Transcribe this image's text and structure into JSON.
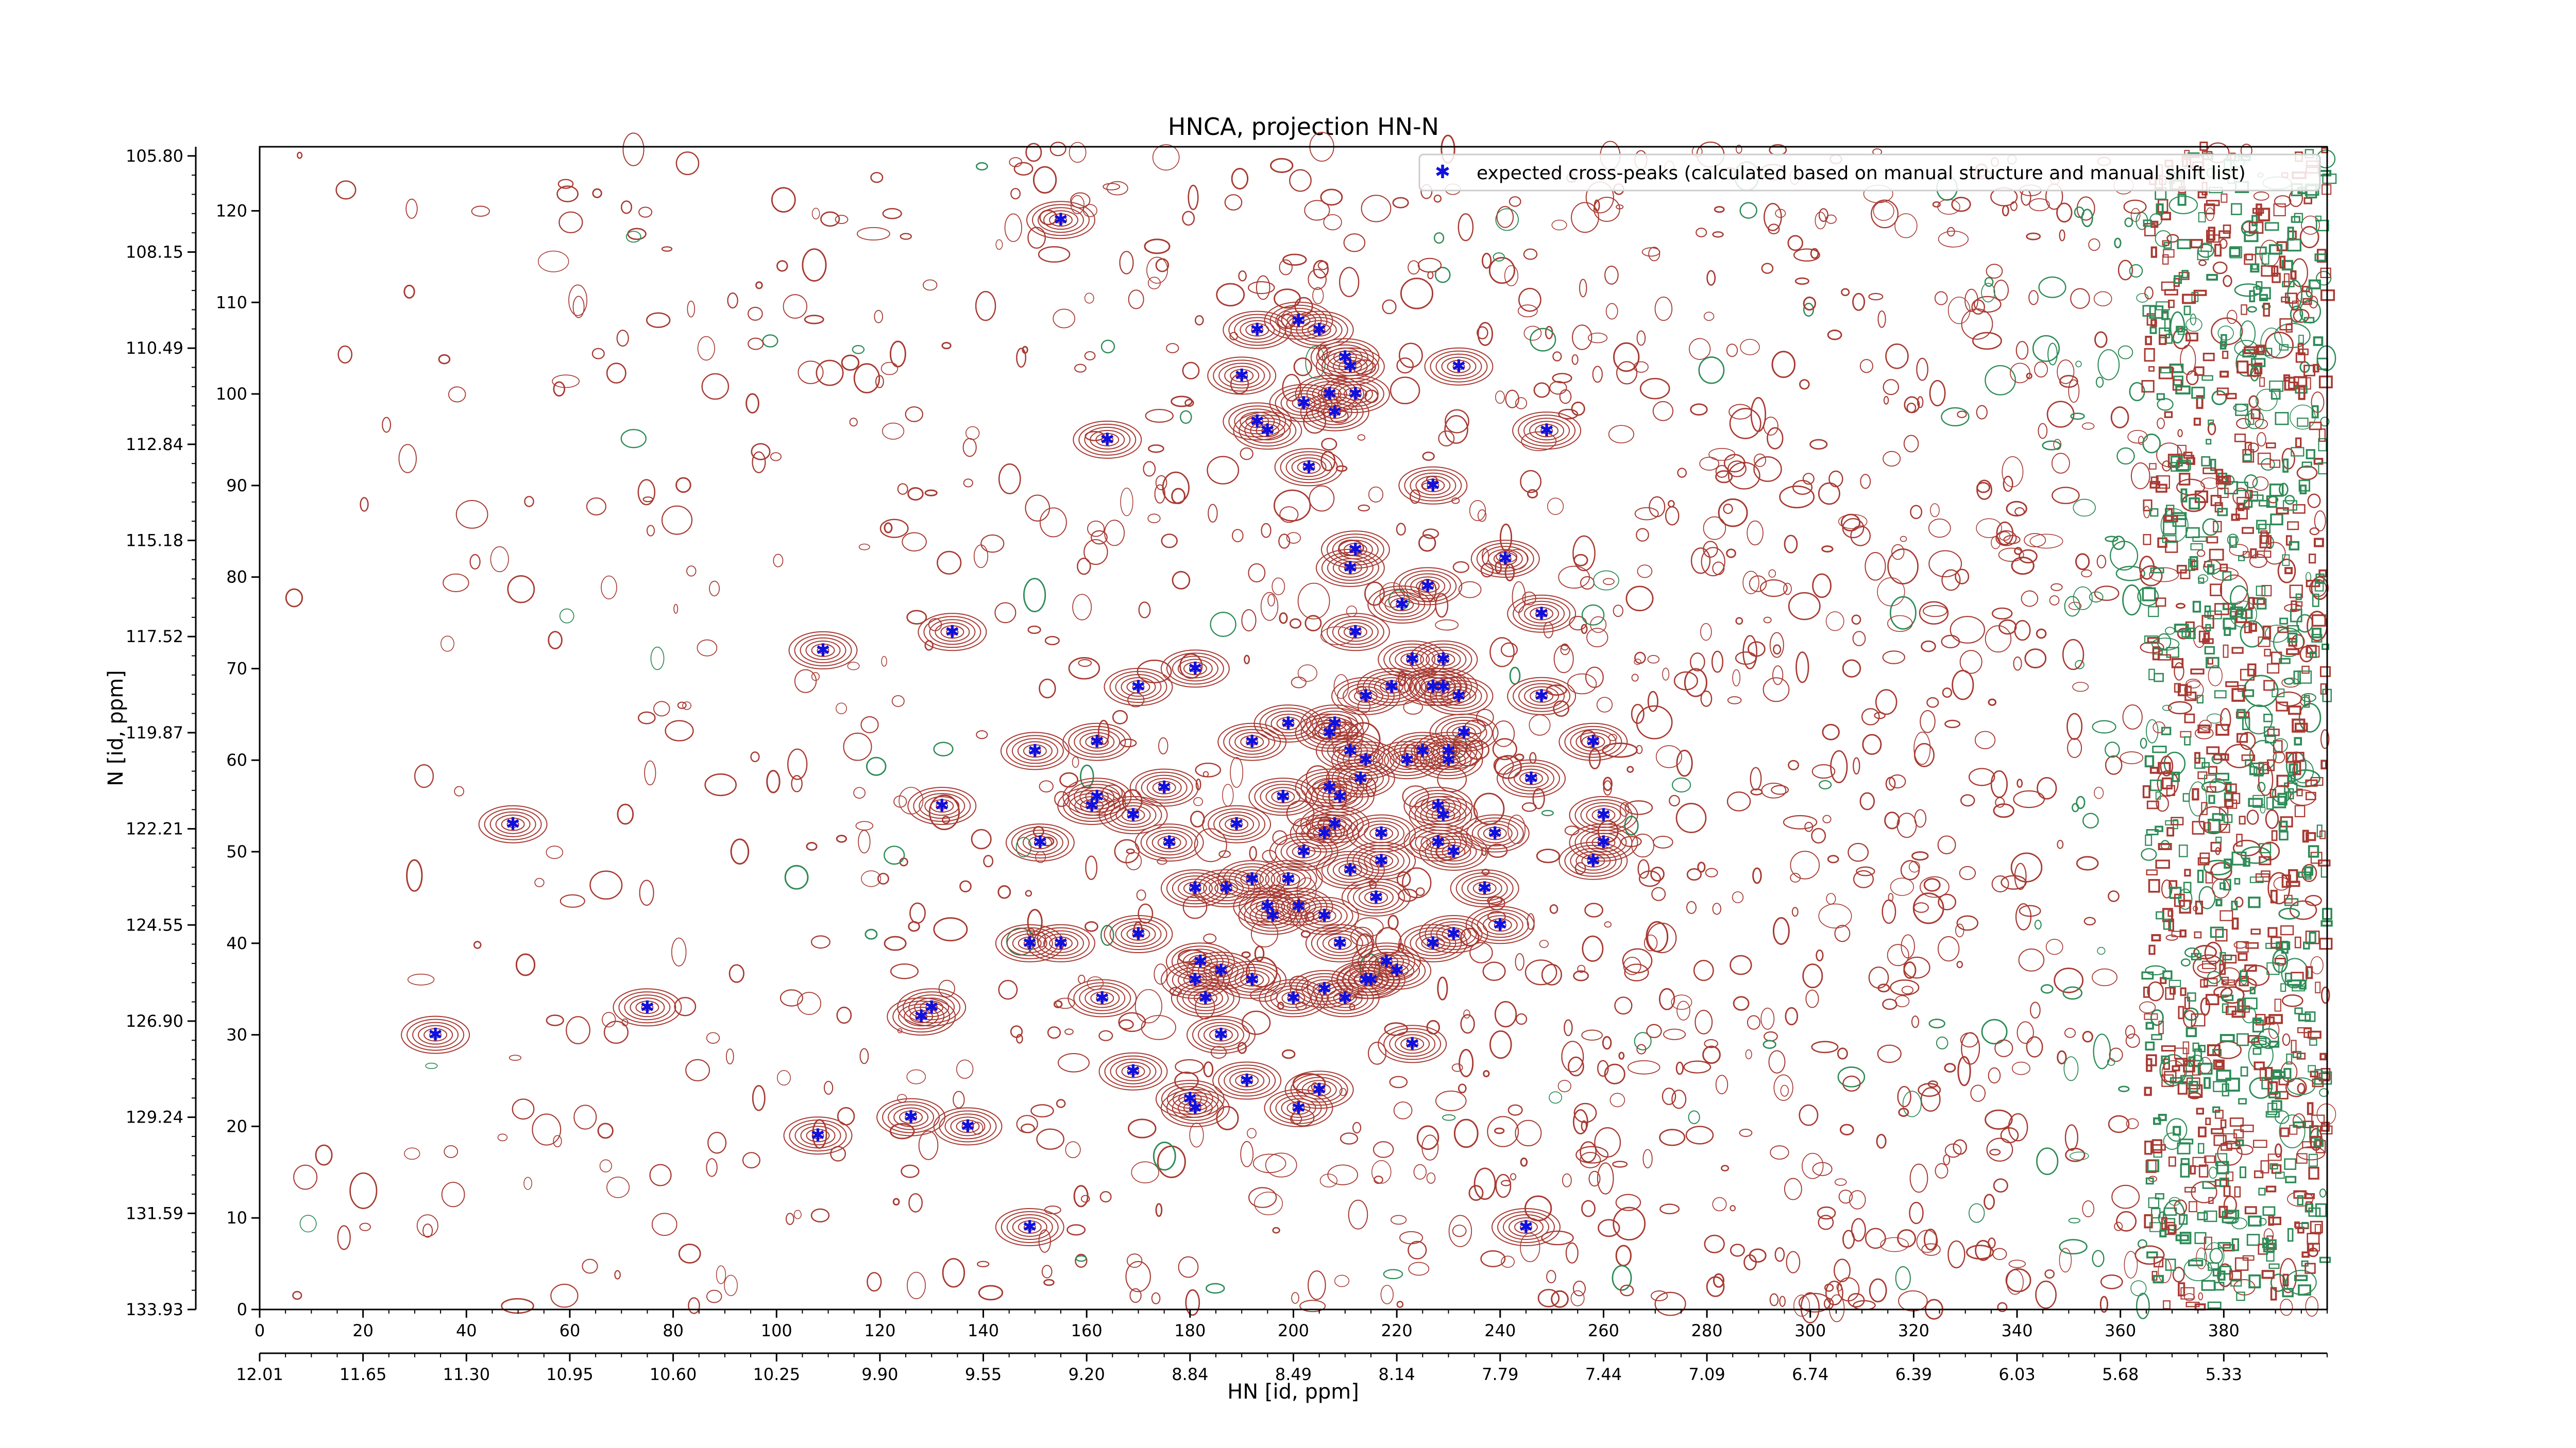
{
  "chart_data": {
    "type": "scatter",
    "title": "HNCA, projection HN-N",
    "xlabel": "HN [id, ppm]",
    "ylabel": "N [id, ppm]",
    "xlim": [
      0,
      400
    ],
    "ylim": [
      0,
      127
    ],
    "x_ticks": [
      0,
      20,
      40,
      60,
      80,
      100,
      120,
      140,
      160,
      180,
      200,
      220,
      240,
      260,
      280,
      300,
      320,
      340,
      360,
      380
    ],
    "y_ticks": [
      0,
      10,
      20,
      30,
      40,
      50,
      60,
      70,
      80,
      90,
      100,
      110,
      120
    ],
    "ppm_x_ticks": [
      {
        "at": 0,
        "label": "12.01"
      },
      {
        "at": 20,
        "label": "11.65"
      },
      {
        "at": 40,
        "label": "11.30"
      },
      {
        "at": 60,
        "label": "10.95"
      },
      {
        "at": 80,
        "label": "10.60"
      },
      {
        "at": 100,
        "label": "10.25"
      },
      {
        "at": 120,
        "label": "9.90"
      },
      {
        "at": 140,
        "label": "9.55"
      },
      {
        "at": 160,
        "label": "9.20"
      },
      {
        "at": 180,
        "label": "8.84"
      },
      {
        "at": 200,
        "label": "8.49"
      },
      {
        "at": 220,
        "label": "8.14"
      },
      {
        "at": 240,
        "label": "7.79"
      },
      {
        "at": 260,
        "label": "7.44"
      },
      {
        "at": 280,
        "label": "7.09"
      },
      {
        "at": 300,
        "label": "6.74"
      },
      {
        "at": 320,
        "label": "6.39"
      },
      {
        "at": 340,
        "label": "6.03"
      },
      {
        "at": 360,
        "label": "5.68"
      },
      {
        "at": 380,
        "label": "5.33"
      }
    ],
    "ppm_y_ticks": [
      {
        "at": 0,
        "label": "133.93"
      },
      {
        "at": 10.5,
        "label": "131.59"
      },
      {
        "at": 21,
        "label": "129.24"
      },
      {
        "at": 31.5,
        "label": "126.90"
      },
      {
        "at": 42,
        "label": "124.55"
      },
      {
        "at": 52.5,
        "label": "122.21"
      },
      {
        "at": 63,
        "label": "119.87"
      },
      {
        "at": 73.5,
        "label": "117.52"
      },
      {
        "at": 84,
        "label": "115.18"
      },
      {
        "at": 94.5,
        "label": "112.84"
      },
      {
        "at": 105,
        "label": "110.49"
      },
      {
        "at": 115.5,
        "label": "108.15"
      },
      {
        "at": 126,
        "label": "105.80"
      }
    ],
    "legend": "top-right",
    "colors": {
      "contour_positive": "#a83a32",
      "contour_negative": "#2e8b57",
      "marker": "#1010e0"
    },
    "series": [
      {
        "name": "expected cross-peaks (calculated based on manual structure and manual shift list)",
        "points": [
          [
            34,
            30
          ],
          [
            49,
            53
          ],
          [
            75,
            33
          ],
          [
            108,
            19
          ],
          [
            109,
            72
          ],
          [
            126,
            21
          ],
          [
            128,
            32
          ],
          [
            130,
            33
          ],
          [
            132,
            55
          ],
          [
            134,
            74
          ],
          [
            137,
            20
          ],
          [
            149,
            9
          ],
          [
            149,
            40
          ],
          [
            150,
            61
          ],
          [
            151,
            51
          ],
          [
            155,
            40
          ],
          [
            155,
            119
          ],
          [
            161,
            55
          ],
          [
            162,
            56
          ],
          [
            162,
            62
          ],
          [
            163,
            34
          ],
          [
            164,
            95
          ],
          [
            169,
            26
          ],
          [
            169,
            54
          ],
          [
            170,
            41
          ],
          [
            170,
            68
          ],
          [
            175,
            57
          ],
          [
            176,
            51
          ],
          [
            180,
            23
          ],
          [
            181,
            22
          ],
          [
            181,
            46
          ],
          [
            181,
            70
          ],
          [
            181,
            36
          ],
          [
            182,
            38
          ],
          [
            183,
            34
          ],
          [
            186,
            37
          ],
          [
            186,
            30
          ],
          [
            187,
            46
          ],
          [
            189,
            53
          ],
          [
            190,
            102
          ],
          [
            191,
            25
          ],
          [
            192,
            62
          ],
          [
            192,
            36
          ],
          [
            192,
            47
          ],
          [
            193,
            107
          ],
          [
            193,
            97
          ],
          [
            195,
            96
          ],
          [
            195,
            44
          ],
          [
            196,
            43
          ],
          [
            198,
            56
          ],
          [
            199,
            47
          ],
          [
            199,
            64
          ],
          [
            200,
            34
          ],
          [
            201,
            108
          ],
          [
            201,
            44
          ],
          [
            201,
            22
          ],
          [
            202,
            50
          ],
          [
            202,
            99
          ],
          [
            203,
            92
          ],
          [
            205,
            107
          ],
          [
            205,
            24
          ],
          [
            206,
            35
          ],
          [
            206,
            43
          ],
          [
            206,
            52
          ],
          [
            207,
            100
          ],
          [
            207,
            57
          ],
          [
            207,
            63
          ],
          [
            208,
            64
          ],
          [
            208,
            53
          ],
          [
            208,
            98
          ],
          [
            209,
            40
          ],
          [
            209,
            56
          ],
          [
            210,
            104
          ],
          [
            210,
            34
          ],
          [
            211,
            81
          ],
          [
            211,
            103
          ],
          [
            211,
            61
          ],
          [
            211,
            48
          ],
          [
            212,
            83
          ],
          [
            212,
            100
          ],
          [
            212,
            74
          ],
          [
            213,
            58
          ],
          [
            214,
            67
          ],
          [
            214,
            60
          ],
          [
            214,
            36
          ],
          [
            215,
            36
          ],
          [
            216,
            45
          ],
          [
            217,
            49
          ],
          [
            217,
            52
          ],
          [
            218,
            38
          ],
          [
            219,
            68
          ],
          [
            220,
            37
          ],
          [
            221,
            77
          ],
          [
            222,
            60
          ],
          [
            223,
            29
          ],
          [
            223,
            71
          ],
          [
            225,
            61
          ],
          [
            226,
            79
          ],
          [
            227,
            90
          ],
          [
            227,
            68
          ],
          [
            227,
            40
          ],
          [
            228,
            55
          ],
          [
            228,
            51
          ],
          [
            229,
            54
          ],
          [
            229,
            68
          ],
          [
            229,
            71
          ],
          [
            230,
            61
          ],
          [
            230,
            60
          ],
          [
            231,
            50
          ],
          [
            231,
            41
          ],
          [
            232,
            103
          ],
          [
            232,
            67
          ],
          [
            233,
            63
          ],
          [
            237,
            46
          ],
          [
            239,
            52
          ],
          [
            240,
            42
          ],
          [
            241,
            82
          ],
          [
            245,
            9
          ],
          [
            246,
            58
          ],
          [
            248,
            76
          ],
          [
            248,
            67
          ],
          [
            249,
            96
          ],
          [
            258,
            62
          ],
          [
            258,
            49
          ],
          [
            260,
            54
          ],
          [
            260,
            51
          ]
        ]
      }
    ]
  }
}
